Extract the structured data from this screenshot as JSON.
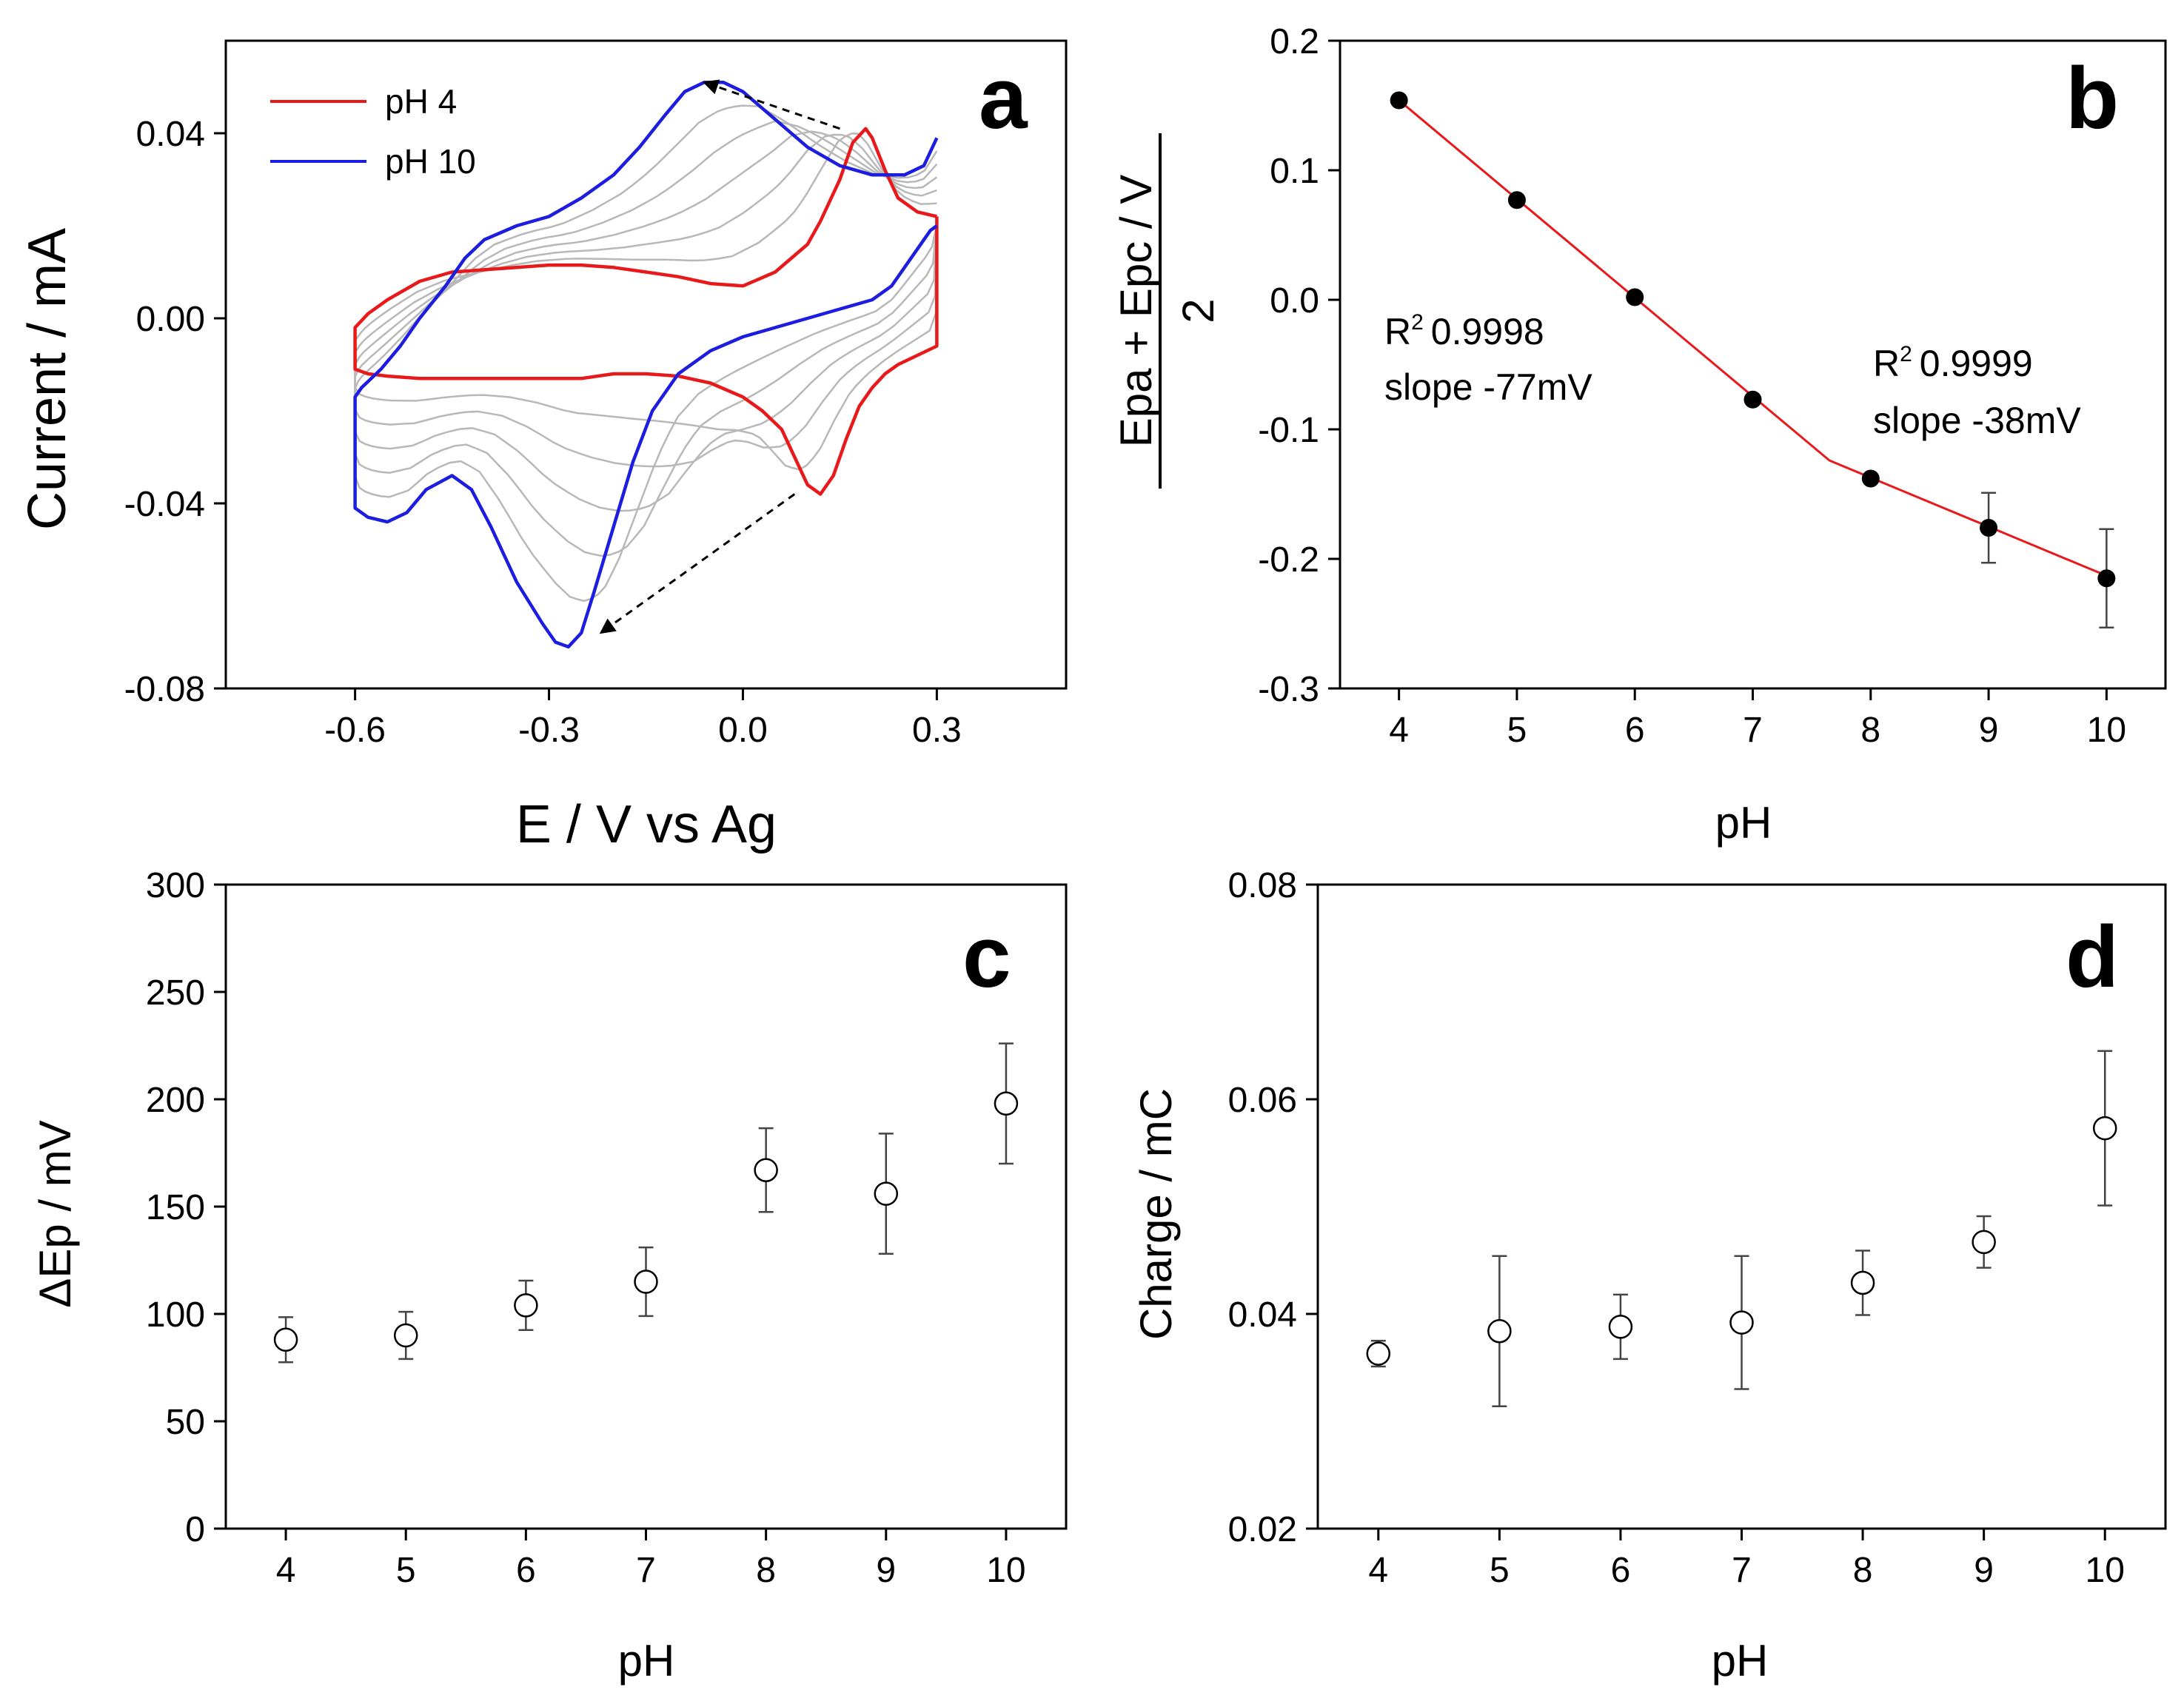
{
  "chart_data": [
    {
      "panel": "a",
      "type": "line",
      "xlabel": "E / V vs Ag",
      "ylabel": "Current / mA",
      "xlim": [
        -0.8,
        0.5
      ],
      "ylim": [
        -0.08,
        0.06
      ],
      "xticks": [
        -0.6,
        -0.3,
        0.0,
        0.3
      ],
      "xtick_labels": [
        "-0.6",
        "-0.3",
        "0.0",
        "0.3"
      ],
      "yticks": [
        -0.08,
        -0.04,
        0.0,
        0.04
      ],
      "ytick_labels": [
        "-0.08",
        "-0.04",
        "0.00",
        "0.04"
      ],
      "grid": false,
      "legend": "top-left",
      "series": [
        {
          "name": "pH 4",
          "color": "#e8191b",
          "x": [
            0.3,
            0.27,
            0.24,
            0.22,
            0.2,
            0.19,
            0.17,
            0.15,
            0.12,
            0.1,
            0.05,
            0.0,
            -0.05,
            -0.1,
            -0.15,
            -0.2,
            -0.25,
            -0.3,
            -0.35,
            -0.4,
            -0.45,
            -0.5,
            -0.55,
            -0.58,
            -0.6,
            -0.6,
            -0.58,
            -0.55,
            -0.5,
            -0.45,
            -0.4,
            -0.35,
            -0.3,
            -0.25,
            -0.2,
            -0.15,
            -0.1,
            -0.05,
            0.0,
            0.03,
            0.06,
            0.08,
            0.1,
            0.12,
            0.14,
            0.16,
            0.18,
            0.2,
            0.22,
            0.24,
            0.27,
            0.3,
            0.3
          ],
          "y": [
            0.022,
            0.023,
            0.026,
            0.032,
            0.039,
            0.041,
            0.038,
            0.03,
            0.021,
            0.016,
            0.01,
            0.007,
            0.0075,
            0.009,
            0.01,
            0.011,
            0.0115,
            0.0115,
            0.011,
            0.0105,
            0.01,
            0.008,
            0.004,
            0.001,
            -0.002,
            -0.011,
            -0.012,
            -0.0125,
            -0.013,
            -0.013,
            -0.013,
            -0.013,
            -0.013,
            -0.013,
            -0.012,
            -0.012,
            -0.0125,
            -0.014,
            -0.017,
            -0.02,
            -0.024,
            -0.03,
            -0.036,
            -0.038,
            -0.034,
            -0.026,
            -0.019,
            -0.015,
            -0.012,
            -0.01,
            -0.008,
            -0.006,
            0.022
          ]
        },
        {
          "name": "pH 10",
          "color": "#1d1de0",
          "x": [
            0.3,
            0.28,
            0.25,
            0.2,
            0.15,
            0.1,
            0.05,
            0.0,
            -0.03,
            -0.06,
            -0.09,
            -0.12,
            -0.16,
            -0.2,
            -0.25,
            -0.3,
            -0.35,
            -0.4,
            -0.43,
            -0.46,
            -0.5,
            -0.53,
            -0.56,
            -0.59,
            -0.6,
            -0.6,
            -0.58,
            -0.55,
            -0.52,
            -0.49,
            -0.45,
            -0.42,
            -0.39,
            -0.35,
            -0.31,
            -0.29,
            -0.27,
            -0.25,
            -0.23,
            -0.2,
            -0.17,
            -0.14,
            -0.1,
            -0.05,
            0.0,
            0.05,
            0.1,
            0.15,
            0.2,
            0.23,
            0.26,
            0.29,
            0.3
          ],
          "y": [
            0.039,
            0.033,
            0.031,
            0.031,
            0.033,
            0.037,
            0.043,
            0.049,
            0.051,
            0.051,
            0.049,
            0.044,
            0.037,
            0.031,
            0.026,
            0.022,
            0.02,
            0.017,
            0.013,
            0.007,
            0.0,
            -0.006,
            -0.011,
            -0.015,
            -0.017,
            -0.041,
            -0.043,
            -0.044,
            -0.042,
            -0.037,
            -0.034,
            -0.037,
            -0.045,
            -0.057,
            -0.066,
            -0.07,
            -0.071,
            -0.068,
            -0.059,
            -0.045,
            -0.031,
            -0.02,
            -0.012,
            -0.007,
            -0.004,
            -0.002,
            0.0,
            0.002,
            0.004,
            0.007,
            0.013,
            0.019,
            0.02
          ]
        }
      ],
      "arrows": [
        {
          "from": [
            0.15,
            0.041
          ],
          "to": [
            -0.06,
            0.051
          ]
        },
        {
          "from": [
            0.08,
            -0.038
          ],
          "to": [
            -0.22,
            -0.068
          ]
        }
      ],
      "panel_label": "a"
    },
    {
      "panel": "b",
      "type": "scatter",
      "xlabel": "pH",
      "ylabel": "Epa + Epc / V",
      "ylabel_denominator": "2",
      "xlim": [
        3.5,
        10.5
      ],
      "ylim": [
        -0.3,
        0.2
      ],
      "xticks": [
        4,
        5,
        6,
        7,
        8,
        9,
        10
      ],
      "xtick_labels": [
        "4",
        "5",
        "6",
        "7",
        "8",
        "9",
        "10"
      ],
      "yticks": [
        -0.3,
        -0.2,
        -0.1,
        0.0,
        0.1,
        0.2
      ],
      "ytick_labels": [
        "-0.3",
        "-0.2",
        "-0.1",
        "0.0",
        "0.1",
        "0.2"
      ],
      "grid": false,
      "x": [
        4,
        5,
        6,
        7,
        8,
        9,
        10
      ],
      "y": [
        0.154,
        0.077,
        0.002,
        -0.077,
        -0.138,
        -0.176,
        -0.215
      ],
      "error": [
        0.0,
        0.0,
        0.0,
        0.0,
        0.0,
        0.027,
        0.038
      ],
      "marker_color": "#000000",
      "fit_line": {
        "color": "#e8191b",
        "x": [
          4,
          7.65,
          10
        ],
        "y": [
          0.154,
          -0.124,
          -0.213
        ]
      },
      "annotations": [
        {
          "r2_symbol": "R",
          "r2_exp": "2",
          "r2_value": "0.9998",
          "slope_text": "slope -77mV"
        },
        {
          "r2_symbol": "R",
          "r2_exp": "2",
          "r2_value": "0.9999",
          "slope_text": "slope -38mV"
        }
      ],
      "panel_label": "b"
    },
    {
      "panel": "c",
      "type": "scatter",
      "xlabel": "pH",
      "ylabel": "ΔEp / mV",
      "xlim": [
        3.5,
        10.5
      ],
      "ylim": [
        0,
        300
      ],
      "xticks": [
        4,
        5,
        6,
        7,
        8,
        9,
        10
      ],
      "xtick_labels": [
        "4",
        "5",
        "6",
        "7",
        "8",
        "9",
        "10"
      ],
      "yticks": [
        0,
        50,
        100,
        150,
        200,
        250,
        300
      ],
      "ytick_labels": [
        "0",
        "50",
        "100",
        "150",
        "200",
        "250",
        "300"
      ],
      "grid": false,
      "x": [
        4,
        5,
        6,
        7,
        8,
        9,
        10
      ],
      "y": [
        88,
        90,
        104,
        115,
        167,
        156,
        198
      ],
      "error": [
        10.5,
        11,
        11.5,
        16,
        19.5,
        28,
        28
      ],
      "marker": "open-circle",
      "panel_label": "c"
    },
    {
      "panel": "d",
      "type": "scatter",
      "xlabel": "pH",
      "ylabel": "Charge / mC",
      "xlim": [
        3.5,
        10.5
      ],
      "ylim": [
        0.02,
        0.08
      ],
      "xticks": [
        4,
        5,
        6,
        7,
        8,
        9,
        10
      ],
      "xtick_labels": [
        "4",
        "5",
        "6",
        "7",
        "8",
        "9",
        "10"
      ],
      "yticks": [
        0.02,
        0.04,
        0.06,
        0.08
      ],
      "ytick_labels": [
        "0.02",
        "0.04",
        "0.06",
        "0.08"
      ],
      "grid": false,
      "x": [
        4,
        5,
        6,
        7,
        8,
        9,
        10
      ],
      "y": [
        0.0363,
        0.0384,
        0.0388,
        0.0392,
        0.0429,
        0.0467,
        0.0573
      ],
      "error": [
        0.0012,
        0.007,
        0.003,
        0.0062,
        0.003,
        0.0024,
        0.0072
      ],
      "marker": "open-circle",
      "panel_label": "d"
    }
  ]
}
